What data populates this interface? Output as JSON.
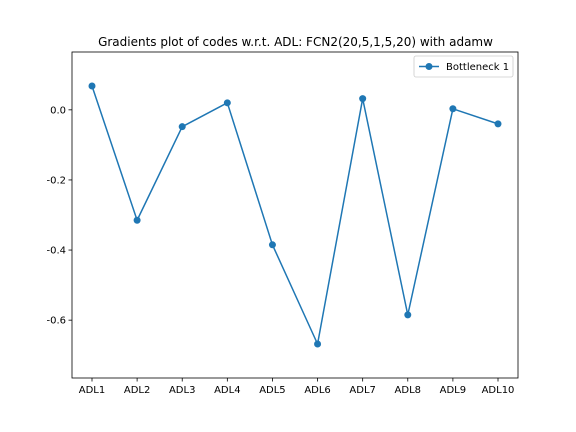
{
  "chart_data": {
    "type": "line",
    "title": "Gradients plot of codes w.r.t. ADL: FCN2(20,5,1,5,20) with adamw",
    "xlabel": "",
    "ylabel": "",
    "categories": [
      "ADL1",
      "ADL2",
      "ADL3",
      "ADL4",
      "ADL5",
      "ADL6",
      "ADL7",
      "ADL8",
      "ADL9",
      "ADL10"
    ],
    "series": [
      {
        "name": "Bottleneck 1",
        "color": "#1f77b4",
        "marker": "circle",
        "values": [
          0.068,
          -0.315,
          -0.048,
          0.02,
          -0.385,
          -0.668,
          0.032,
          -0.585,
          0.003,
          -0.04
        ]
      }
    ],
    "ylim": [
      -0.765,
      0.165
    ],
    "yticks": [
      0.0,
      -0.2,
      -0.4,
      -0.6
    ],
    "ytick_labels": [
      "0.0",
      "-0.2",
      "-0.4",
      "-0.6"
    ],
    "grid": false,
    "legend_position": "top-right"
  }
}
